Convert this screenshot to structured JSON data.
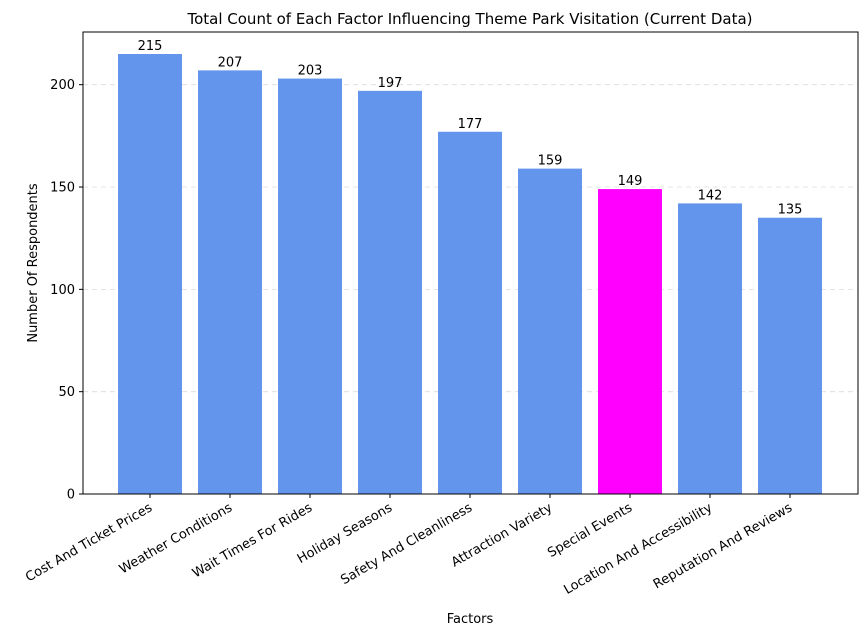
{
  "chart_data": {
    "type": "bar",
    "title": "Total Count of Each Factor Influencing Theme Park Visitation (Current Data)",
    "xlabel": "Factors",
    "ylabel": "Number Of Respondents",
    "categories": [
      "Cost And Ticket Prices",
      "Weather Conditions",
      "Wait Times For Rides",
      "Holiday Seasons",
      "Safety And Cleanliness",
      "Attraction Variety",
      "Special Events",
      "Location And Accessibility",
      "Reputation And Reviews"
    ],
    "values": [
      215,
      207,
      203,
      197,
      177,
      159,
      149,
      142,
      135
    ],
    "data_labels": [
      "215",
      "207",
      "203",
      "197",
      "177",
      "159",
      "149",
      "142",
      "135"
    ],
    "highlight_category": "Special Events",
    "colors": {
      "bar": "#6495ED",
      "highlight": "#FF00FF",
      "grid": "#cccccc",
      "axis": "#000000"
    },
    "yticks": [
      0,
      50,
      100,
      150,
      200
    ],
    "ytick_labels": [
      "0",
      "50",
      "100",
      "150",
      "200"
    ],
    "ylim": [
      0,
      225.75
    ],
    "grid": "horizontal dashed",
    "x_tick_rotation": 30
  }
}
